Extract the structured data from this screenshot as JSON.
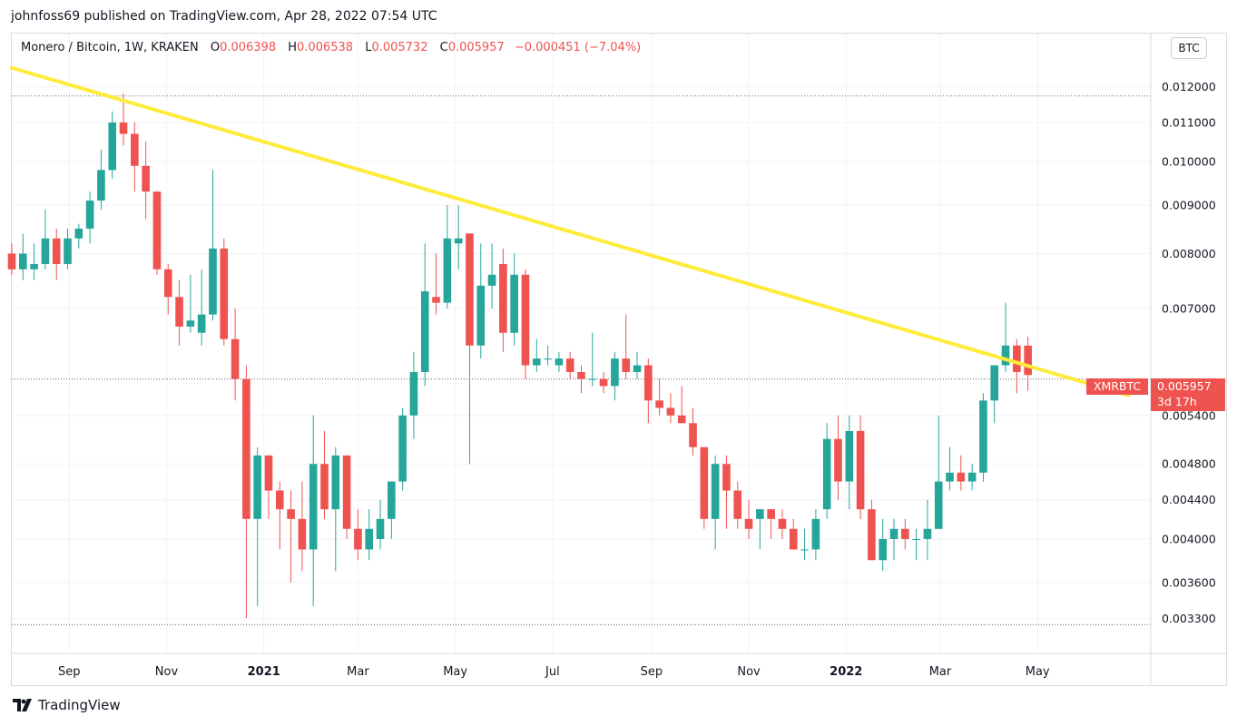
{
  "header": {
    "publisher_text": "johnfoss69 published on TradingView.com, Apr 28, 2022 07:54 UTC"
  },
  "legend": {
    "symbol": "Monero / Bitcoin, 1W, KRAKEN",
    "open_key": "O",
    "open_value": "0.006398",
    "high_key": "H",
    "high_value": "0.006538",
    "low_key": "L",
    "low_value": "0.005732",
    "close_key": "C",
    "close_value": "0.005957",
    "change_text": "−0.000451 (−7.04%)"
  },
  "currency_button": "BTC",
  "price_tag": {
    "symbol": "XMRBTC",
    "price": "0.005957",
    "countdown": "3d 17h"
  },
  "footer": {
    "logo_text": "TradingView"
  },
  "colors": {
    "up": "#26a69a",
    "down": "#ef5350",
    "trendline": "#ffeb3b",
    "grid": "#f0f3fa"
  },
  "chart_data": {
    "type": "candlestick",
    "symbol": "XMRBTC",
    "interval": "1W",
    "exchange": "KRAKEN",
    "y_scale": "log",
    "y_ticks": [
      "0.012000",
      "0.011000",
      "0.010000",
      "0.009000",
      "0.008000",
      "0.007000",
      "0.005400",
      "0.004800",
      "0.004400",
      "0.004000",
      "0.003600",
      "0.003300"
    ],
    "y_tick_values": [
      0.012,
      0.011,
      0.01,
      0.009,
      0.008,
      0.007,
      0.0054,
      0.0048,
      0.0044,
      0.004,
      0.0036,
      0.0033
    ],
    "ylim": [
      0.00303,
      0.01365
    ],
    "x_ticks": [
      "Sep",
      "Nov",
      "2021",
      "Mar",
      "May",
      "Jul",
      "Sep",
      "Nov",
      "2022",
      "Mar",
      "May"
    ],
    "x_tick_values": [
      "2020-09-01",
      "2020-11-01",
      "2021-01-01",
      "2021-03-01",
      "2021-05-01",
      "2021-07-01",
      "2021-09-01",
      "2021-11-01",
      "2022-01-01",
      "2022-03-01",
      "2022-05-01"
    ],
    "x_range": [
      "2020-07-27",
      "2022-07-11"
    ],
    "last_price": 0.005957,
    "dotted_levels": [
      0.01173,
      0.0059,
      0.00325
    ],
    "trendline": {
      "from": [
        "2020-07-27",
        0.01256
      ],
      "to": [
        "2022-06-27",
        0.00567
      ]
    },
    "candles": [
      {
        "t": "2020-07-27",
        "o": 0.008,
        "h": 0.0082,
        "l": 0.0076,
        "c": 0.0077
      },
      {
        "t": "2020-08-03",
        "o": 0.0077,
        "h": 0.0084,
        "l": 0.0075,
        "c": 0.008
      },
      {
        "t": "2020-08-10",
        "o": 0.0077,
        "h": 0.0082,
        "l": 0.0075,
        "c": 0.0078
      },
      {
        "t": "2020-08-17",
        "o": 0.0078,
        "h": 0.0089,
        "l": 0.0077,
        "c": 0.0083
      },
      {
        "t": "2020-08-24",
        "o": 0.0083,
        "h": 0.0085,
        "l": 0.0075,
        "c": 0.0078
      },
      {
        "t": "2020-08-31",
        "o": 0.0078,
        "h": 0.0085,
        "l": 0.0077,
        "c": 0.0083
      },
      {
        "t": "2020-09-07",
        "o": 0.0083,
        "h": 0.0086,
        "l": 0.0081,
        "c": 0.0085
      },
      {
        "t": "2020-09-14",
        "o": 0.0085,
        "h": 0.0093,
        "l": 0.0082,
        "c": 0.0091
      },
      {
        "t": "2020-09-21",
        "o": 0.0091,
        "h": 0.0103,
        "l": 0.0089,
        "c": 0.0098
      },
      {
        "t": "2020-09-28",
        "o": 0.0098,
        "h": 0.0113,
        "l": 0.0096,
        "c": 0.011
      },
      {
        "t": "2020-10-05",
        "o": 0.011,
        "h": 0.0118,
        "l": 0.0104,
        "c": 0.0107
      },
      {
        "t": "2020-10-12",
        "o": 0.0107,
        "h": 0.011,
        "l": 0.0093,
        "c": 0.0099
      },
      {
        "t": "2020-10-19",
        "o": 0.0099,
        "h": 0.0105,
        "l": 0.0087,
        "c": 0.0093
      },
      {
        "t": "2020-10-26",
        "o": 0.0093,
        "h": 0.0093,
        "l": 0.0076,
        "c": 0.0077
      },
      {
        "t": "2020-11-02",
        "o": 0.0077,
        "h": 0.0078,
        "l": 0.0069,
        "c": 0.0072
      },
      {
        "t": "2020-11-09",
        "o": 0.0072,
        "h": 0.0075,
        "l": 0.0064,
        "c": 0.0067
      },
      {
        "t": "2020-11-16",
        "o": 0.0067,
        "h": 0.0076,
        "l": 0.0066,
        "c": 0.0068
      },
      {
        "t": "2020-11-23",
        "o": 0.0066,
        "h": 0.0077,
        "l": 0.0064,
        "c": 0.0069
      },
      {
        "t": "2020-11-30",
        "o": 0.0069,
        "h": 0.0098,
        "l": 0.0068,
        "c": 0.0081
      },
      {
        "t": "2020-12-07",
        "o": 0.0081,
        "h": 0.0083,
        "l": 0.0064,
        "c": 0.0065
      },
      {
        "t": "2020-12-14",
        "o": 0.0065,
        "h": 0.007,
        "l": 0.0056,
        "c": 0.0059
      },
      {
        "t": "2020-12-21",
        "o": 0.0059,
        "h": 0.0061,
        "l": 0.0033,
        "c": 0.0042
      },
      {
        "t": "2020-12-28",
        "o": 0.0042,
        "h": 0.005,
        "l": 0.0034,
        "c": 0.0049
      },
      {
        "t": "2021-01-04",
        "o": 0.0049,
        "h": 0.0049,
        "l": 0.0042,
        "c": 0.0045
      },
      {
        "t": "2021-01-11",
        "o": 0.0045,
        "h": 0.0046,
        "l": 0.0039,
        "c": 0.0043
      },
      {
        "t": "2021-01-18",
        "o": 0.0043,
        "h": 0.0045,
        "l": 0.0036,
        "c": 0.0042
      },
      {
        "t": "2021-01-25",
        "o": 0.0042,
        "h": 0.0046,
        "l": 0.0037,
        "c": 0.0039
      },
      {
        "t": "2021-02-01",
        "o": 0.0039,
        "h": 0.0054,
        "l": 0.0034,
        "c": 0.0048
      },
      {
        "t": "2021-02-08",
        "o": 0.0048,
        "h": 0.0052,
        "l": 0.0042,
        "c": 0.0043
      },
      {
        "t": "2021-02-15",
        "o": 0.0043,
        "h": 0.005,
        "l": 0.0037,
        "c": 0.0049
      },
      {
        "t": "2021-02-22",
        "o": 0.0049,
        "h": 0.0049,
        "l": 0.004,
        "c": 0.0041
      },
      {
        "t": "2021-03-01",
        "o": 0.0041,
        "h": 0.0043,
        "l": 0.0038,
        "c": 0.0039
      },
      {
        "t": "2021-03-08",
        "o": 0.0039,
        "h": 0.0043,
        "l": 0.0038,
        "c": 0.0041
      },
      {
        "t": "2021-03-15",
        "o": 0.004,
        "h": 0.0044,
        "l": 0.0039,
        "c": 0.0042
      },
      {
        "t": "2021-03-22",
        "o": 0.0042,
        "h": 0.0046,
        "l": 0.004,
        "c": 0.0046
      },
      {
        "t": "2021-03-29",
        "o": 0.0046,
        "h": 0.0055,
        "l": 0.0045,
        "c": 0.0054
      },
      {
        "t": "2021-04-05",
        "o": 0.0054,
        "h": 0.0063,
        "l": 0.0051,
        "c": 0.006
      },
      {
        "t": "2021-04-12",
        "o": 0.006,
        "h": 0.0082,
        "l": 0.0058,
        "c": 0.0073
      },
      {
        "t": "2021-04-19",
        "o": 0.0072,
        "h": 0.008,
        "l": 0.0069,
        "c": 0.0071
      },
      {
        "t": "2021-04-26",
        "o": 0.0071,
        "h": 0.009,
        "l": 0.007,
        "c": 0.0083
      },
      {
        "t": "2021-05-03",
        "o": 0.0082,
        "h": 0.009,
        "l": 0.0077,
        "c": 0.0083
      },
      {
        "t": "2021-05-10",
        "o": 0.0084,
        "h": 0.0084,
        "l": 0.0048,
        "c": 0.0064
      },
      {
        "t": "2021-05-17",
        "o": 0.0064,
        "h": 0.0082,
        "l": 0.0062,
        "c": 0.0074
      },
      {
        "t": "2021-05-24",
        "o": 0.0074,
        "h": 0.0082,
        "l": 0.007,
        "c": 0.0076
      },
      {
        "t": "2021-05-31",
        "o": 0.0078,
        "h": 0.0081,
        "l": 0.0063,
        "c": 0.0066
      },
      {
        "t": "2021-06-07",
        "o": 0.0066,
        "h": 0.008,
        "l": 0.0064,
        "c": 0.0076
      },
      {
        "t": "2021-06-14",
        "o": 0.0076,
        "h": 0.0077,
        "l": 0.0059,
        "c": 0.0061
      },
      {
        "t": "2021-06-21",
        "o": 0.0061,
        "h": 0.0065,
        "l": 0.006,
        "c": 0.0062
      },
      {
        "t": "2021-06-28",
        "o": 0.0062,
        "h": 0.0064,
        "l": 0.0061,
        "c": 0.0062
      },
      {
        "t": "2021-07-05",
        "o": 0.0061,
        "h": 0.0063,
        "l": 0.006,
        "c": 0.0062
      },
      {
        "t": "2021-07-12",
        "o": 0.0062,
        "h": 0.0063,
        "l": 0.0059,
        "c": 0.006
      },
      {
        "t": "2021-07-19",
        "o": 0.006,
        "h": 0.0061,
        "l": 0.0057,
        "c": 0.0059
      },
      {
        "t": "2021-07-26",
        "o": 0.0059,
        "h": 0.0066,
        "l": 0.0058,
        "c": 0.0059
      },
      {
        "t": "2021-08-02",
        "o": 0.0059,
        "h": 0.006,
        "l": 0.0057,
        "c": 0.0058
      },
      {
        "t": "2021-08-09",
        "o": 0.0058,
        "h": 0.0063,
        "l": 0.0056,
        "c": 0.0062
      },
      {
        "t": "2021-08-16",
        "o": 0.0062,
        "h": 0.0069,
        "l": 0.0059,
        "c": 0.006
      },
      {
        "t": "2021-08-23",
        "o": 0.006,
        "h": 0.0063,
        "l": 0.0059,
        "c": 0.0061
      },
      {
        "t": "2021-08-30",
        "o": 0.0061,
        "h": 0.0062,
        "l": 0.0053,
        "c": 0.0056
      },
      {
        "t": "2021-09-06",
        "o": 0.0056,
        "h": 0.0059,
        "l": 0.0054,
        "c": 0.0055
      },
      {
        "t": "2021-09-13",
        "o": 0.0055,
        "h": 0.0057,
        "l": 0.0053,
        "c": 0.0054
      },
      {
        "t": "2021-09-20",
        "o": 0.0054,
        "h": 0.0058,
        "l": 0.0053,
        "c": 0.0053
      },
      {
        "t": "2021-09-27",
        "o": 0.0053,
        "h": 0.0055,
        "l": 0.0049,
        "c": 0.005
      },
      {
        "t": "2021-10-04",
        "o": 0.005,
        "h": 0.005,
        "l": 0.0041,
        "c": 0.0042
      },
      {
        "t": "2021-10-11",
        "o": 0.0042,
        "h": 0.0049,
        "l": 0.0039,
        "c": 0.0048
      },
      {
        "t": "2021-10-18",
        "o": 0.0048,
        "h": 0.0049,
        "l": 0.0041,
        "c": 0.0045
      },
      {
        "t": "2021-10-25",
        "o": 0.0045,
        "h": 0.0046,
        "l": 0.0041,
        "c": 0.0042
      },
      {
        "t": "2021-11-01",
        "o": 0.0042,
        "h": 0.0044,
        "l": 0.004,
        "c": 0.0041
      },
      {
        "t": "2021-11-08",
        "o": 0.0042,
        "h": 0.0043,
        "l": 0.0039,
        "c": 0.0043
      },
      {
        "t": "2021-11-15",
        "o": 0.0043,
        "h": 0.0043,
        "l": 0.004,
        "c": 0.0042
      },
      {
        "t": "2021-11-22",
        "o": 0.0042,
        "h": 0.0043,
        "l": 0.004,
        "c": 0.0041
      },
      {
        "t": "2021-11-29",
        "o": 0.0041,
        "h": 0.0042,
        "l": 0.0039,
        "c": 0.0039
      },
      {
        "t": "2021-12-06",
        "o": 0.0039,
        "h": 0.0041,
        "l": 0.0038,
        "c": 0.0039
      },
      {
        "t": "2021-12-13",
        "o": 0.0039,
        "h": 0.0043,
        "l": 0.0038,
        "c": 0.0042
      },
      {
        "t": "2021-12-20",
        "o": 0.0043,
        "h": 0.0053,
        "l": 0.0042,
        "c": 0.0051
      },
      {
        "t": "2021-12-27",
        "o": 0.0051,
        "h": 0.0054,
        "l": 0.0044,
        "c": 0.0046
      },
      {
        "t": "2022-01-03",
        "o": 0.0046,
        "h": 0.0054,
        "l": 0.0043,
        "c": 0.0052
      },
      {
        "t": "2022-01-10",
        "o": 0.0052,
        "h": 0.0054,
        "l": 0.0042,
        "c": 0.0043
      },
      {
        "t": "2022-01-17",
        "o": 0.0043,
        "h": 0.0044,
        "l": 0.0038,
        "c": 0.0038
      },
      {
        "t": "2022-01-24",
        "o": 0.0038,
        "h": 0.0042,
        "l": 0.0037,
        "c": 0.004
      },
      {
        "t": "2022-01-31",
        "o": 0.004,
        "h": 0.0042,
        "l": 0.0038,
        "c": 0.0041
      },
      {
        "t": "2022-02-07",
        "o": 0.0041,
        "h": 0.0042,
        "l": 0.0039,
        "c": 0.004
      },
      {
        "t": "2022-02-14",
        "o": 0.004,
        "h": 0.0041,
        "l": 0.0038,
        "c": 0.004
      },
      {
        "t": "2022-02-21",
        "o": 0.004,
        "h": 0.0044,
        "l": 0.0038,
        "c": 0.0041
      },
      {
        "t": "2022-02-28",
        "o": 0.0041,
        "h": 0.0054,
        "l": 0.0041,
        "c": 0.0046
      },
      {
        "t": "2022-03-07",
        "o": 0.0046,
        "h": 0.005,
        "l": 0.0045,
        "c": 0.0047
      },
      {
        "t": "2022-03-14",
        "o": 0.0047,
        "h": 0.0049,
        "l": 0.0045,
        "c": 0.0046
      },
      {
        "t": "2022-03-21",
        "o": 0.0046,
        "h": 0.0048,
        "l": 0.0045,
        "c": 0.0047
      },
      {
        "t": "2022-03-28",
        "o": 0.0047,
        "h": 0.0057,
        "l": 0.0046,
        "c": 0.0056
      },
      {
        "t": "2022-04-04",
        "o": 0.0056,
        "h": 0.0061,
        "l": 0.0053,
        "c": 0.0061
      },
      {
        "t": "2022-04-11",
        "o": 0.0061,
        "h": 0.0071,
        "l": 0.006,
        "c": 0.0064
      },
      {
        "t": "2022-04-18",
        "o": 0.0064,
        "h": 0.0065,
        "l": 0.0057,
        "c": 0.006
      },
      {
        "t": "2022-04-25",
        "o": 0.006398,
        "h": 0.006538,
        "l": 0.005732,
        "c": 0.005957
      }
    ]
  }
}
